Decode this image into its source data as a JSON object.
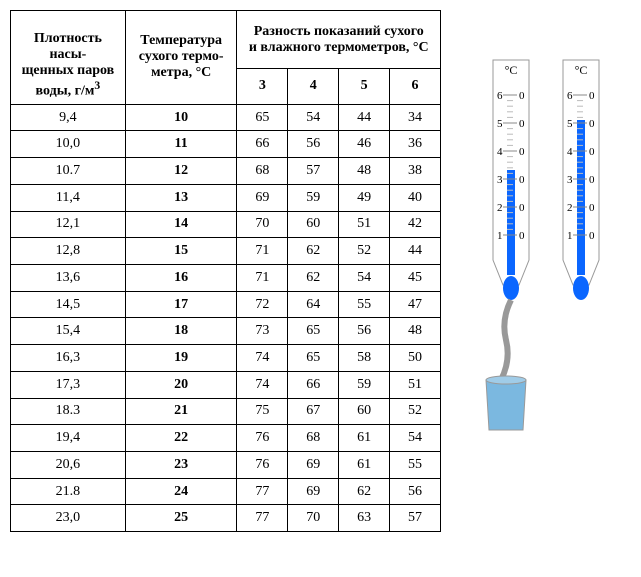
{
  "table": {
    "headers": {
      "density": "Плотность насы-\nщенных паров\nводы, г/м",
      "density_sup": "3",
      "temp": "Температура\nсухого термо-\nметра, °C",
      "diff": "Разность показаний сухого\nи влажного термометров, °C",
      "diff_cols": [
        "3",
        "4",
        "5",
        "6"
      ]
    },
    "rows": [
      {
        "d": "9,4",
        "t": "10",
        "v": [
          "65",
          "54",
          "44",
          "34"
        ]
      },
      {
        "d": "10,0",
        "t": "11",
        "v": [
          "66",
          "56",
          "46",
          "36"
        ]
      },
      {
        "d": "10.7",
        "t": "12",
        "v": [
          "68",
          "57",
          "48",
          "38"
        ]
      },
      {
        "d": "11,4",
        "t": "13",
        "v": [
          "69",
          "59",
          "49",
          "40"
        ]
      },
      {
        "d": "12,1",
        "t": "14",
        "v": [
          "70",
          "60",
          "51",
          "42"
        ]
      },
      {
        "d": "12,8",
        "t": "15",
        "v": [
          "71",
          "62",
          "52",
          "44"
        ]
      },
      {
        "d": "13,6",
        "t": "16",
        "v": [
          "71",
          "62",
          "54",
          "45"
        ]
      },
      {
        "d": "14,5",
        "t": "17",
        "v": [
          "72",
          "64",
          "55",
          "47"
        ]
      },
      {
        "d": "15,4",
        "t": "18",
        "v": [
          "73",
          "65",
          "56",
          "48"
        ]
      },
      {
        "d": "16,3",
        "t": "19",
        "v": [
          "74",
          "65",
          "58",
          "50"
        ]
      },
      {
        "d": "17,3",
        "t": "20",
        "v": [
          "74",
          "66",
          "59",
          "51"
        ]
      },
      {
        "d": "18.3",
        "t": "21",
        "v": [
          "75",
          "67",
          "60",
          "52"
        ]
      },
      {
        "d": "19,4",
        "t": "22",
        "v": [
          "76",
          "68",
          "61",
          "54"
        ]
      },
      {
        "d": "20,6",
        "t": "23",
        "v": [
          "76",
          "69",
          "61",
          "55"
        ]
      },
      {
        "d": "21.8",
        "t": "24",
        "v": [
          "77",
          "69",
          "62",
          "56"
        ]
      },
      {
        "d": "23,0",
        "t": "25",
        "v": [
          "77",
          "70",
          "63",
          "57"
        ]
      }
    ]
  },
  "thermo": {
    "unit": "°C",
    "labels_left": [
      "6",
      "5",
      "4",
      "3",
      "2",
      "1"
    ],
    "labels_right": [
      "0",
      "0",
      "0",
      "0",
      "0",
      "0"
    ],
    "wet_color": "#0a66ff",
    "water_color": "#7bb8e0",
    "outline": "#999999",
    "tick_color": "#888888"
  }
}
